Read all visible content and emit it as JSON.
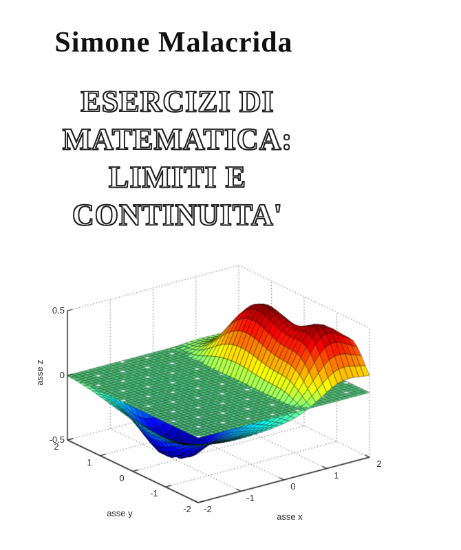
{
  "cover": {
    "author": "Simone Malacrida",
    "title_line1": "ESERCIZI DI MATEMATICA:",
    "title_line2": "LIMITI E CONTINUITA'"
  },
  "chart_data": {
    "type": "surface",
    "title": "",
    "xlabel": "asse x",
    "ylabel": "asse y",
    "zlabel": "asse z",
    "xlim": [
      -2,
      2
    ],
    "ylim": [
      -2,
      2
    ],
    "zlim": [
      -0.5,
      0.5
    ],
    "x_ticks": [
      -2,
      -1,
      0,
      1,
      2
    ],
    "y_ticks": [
      2,
      1,
      0,
      -1,
      -2
    ],
    "z_ticks": [
      0.5,
      0,
      -0.5
    ],
    "x_tick_labels": [
      "-2",
      "-1",
      "0",
      "1",
      "2"
    ],
    "y_tick_labels": [
      "2",
      "1",
      "0",
      "-1",
      "-2"
    ],
    "z_tick_labels": [
      "0.5",
      "0",
      "-0.5"
    ],
    "colormap": "jet",
    "grid": "dotted",
    "background": "#ffffff",
    "axis_color": "#1c1c1c",
    "grid_color": "#6a6a6a",
    "view": {
      "azimuth": -37.5,
      "elevation": 30
    },
    "projection": {
      "u0": 317.5,
      "ux": 62.25,
      "uy": -47.5,
      "v0": 558.5,
      "vx": -16.5,
      "vy": -22.75,
      "vz": -188,
      "canvas_top": 380
    },
    "depth_dir": {
      "dx": -0.527,
      "dy": -0.687,
      "dz": 0.5
    },
    "zero_plane": {
      "z": 0,
      "cells": 40,
      "face_colors": [
        "#4fb873",
        "#58c17e",
        "#d8f4e3"
      ],
      "edge_color": "rgba(10,55,25,0.75)",
      "depth_bias": 0.012
    },
    "surface": {
      "cells": 32,
      "edge_color": "rgba(0,0,0,0.65)",
      "z_clamp": [
        -0.5,
        0.5
      ],
      "description": "Surface with a flat-topped ridge rising to z=+0.5 over the right half (x=1.2, bending toward (2,-1.5)) and a deep round pit to z=-0.5 near (-0.7,0.45), intersecting the plane z=0; classic limits/continuity example rendered in MATLAB jet colors.",
      "components": [
        {
          "type": "ridge_x",
          "A": 0.44,
          "x0": 1.15,
          "sx": 0.5,
          "ya": 1.7,
          "wa": 0.45,
          "yb": 1.05,
          "wb": 0.55
        },
        {
          "type": "gauss_gate",
          "A": 0.3,
          "y0": -1.45,
          "sy": 0.42,
          "gx0": 1.15,
          "gw": 0.45
        },
        {
          "type": "gauss",
          "A": 0.1,
          "x0": 1.1,
          "y0": 0.1,
          "sx": 0.35,
          "sy": 0.5
        },
        {
          "type": "gauss",
          "A": -0.53,
          "x0": -0.7,
          "y0": 0.45,
          "sx": 0.6,
          "sy": 0.7
        },
        {
          "type": "gauss",
          "A": -0.16,
          "x0": -1.35,
          "y0": -0.95,
          "sx": 0.85,
          "sy": 0.8
        },
        {
          "type": "gauss",
          "A": -0.1,
          "x0": 0.2,
          "y0": -1.1,
          "sx": 1.1,
          "sy": 0.8
        }
      ]
    }
  }
}
